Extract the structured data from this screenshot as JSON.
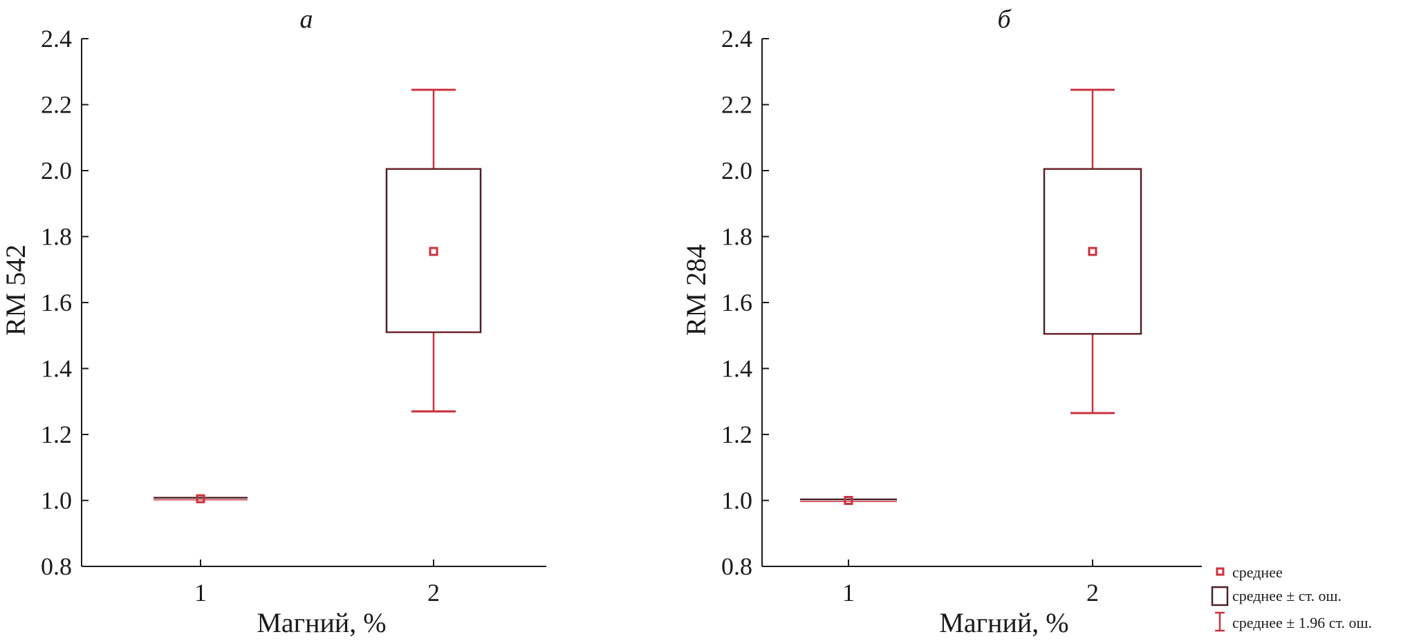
{
  "colors": {
    "box": "#4a2024",
    "whisker": "#c8323c",
    "mean": "#c8323c",
    "axis": "#1a1a1a"
  },
  "legend": {
    "mean": "среднее",
    "box": "среднее ± ст. ош.",
    "whisker": "среднее ± 1.96 ст. ош."
  },
  "chart_data": [
    {
      "type": "boxplot",
      "title": "а",
      "xlabel": "Магний, %",
      "ylabel": "RM 542",
      "categories": [
        "1",
        "2"
      ],
      "ylim": [
        0.8,
        2.4
      ],
      "yticks": [
        "0.8",
        "1.0",
        "1.2",
        "1.4",
        "1.6",
        "1.8",
        "2.0",
        "2.2",
        "2.4"
      ],
      "grid": false,
      "series": [
        {
          "category": "1",
          "mean": 1.005,
          "se_low": 1.005,
          "se_high": 1.005,
          "ci_low": 1.005,
          "ci_high": 1.005
        },
        {
          "category": "2",
          "mean": 1.755,
          "se_low": 1.51,
          "se_high": 2.005,
          "ci_low": 1.27,
          "ci_high": 2.245
        }
      ]
    },
    {
      "type": "boxplot",
      "title": "б",
      "xlabel": "Магний, %",
      "ylabel": "RM 284",
      "categories": [
        "1",
        "2"
      ],
      "ylim": [
        0.8,
        2.4
      ],
      "yticks": [
        "0.8",
        "1.0",
        "1.2",
        "1.4",
        "1.6",
        "1.8",
        "2.0",
        "2.2",
        "2.4"
      ],
      "grid": false,
      "series": [
        {
          "category": "1",
          "mean": 1.0,
          "se_low": 1.0,
          "se_high": 1.0,
          "ci_low": 1.0,
          "ci_high": 1.0
        },
        {
          "category": "2",
          "mean": 1.755,
          "se_low": 1.505,
          "se_high": 2.005,
          "ci_low": 1.265,
          "ci_high": 2.245
        }
      ]
    }
  ]
}
